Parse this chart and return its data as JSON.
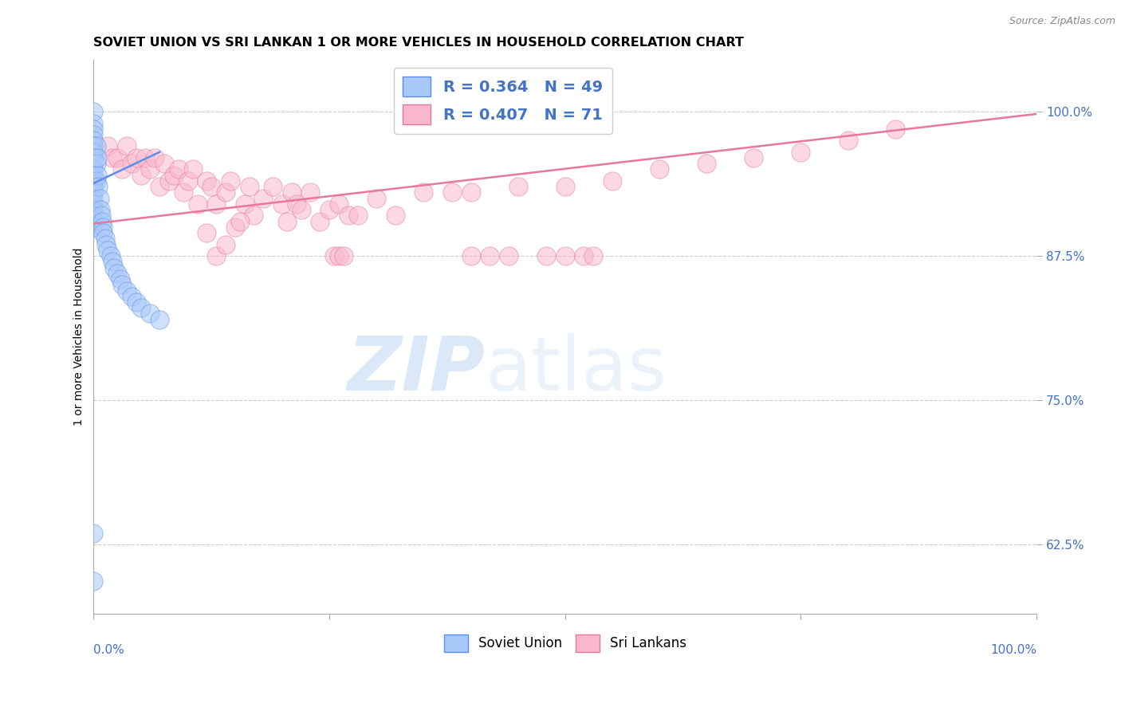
{
  "title": "SOVIET UNION VS SRI LANKAN 1 OR MORE VEHICLES IN HOUSEHOLD CORRELATION CHART",
  "source": "Source: ZipAtlas.com",
  "ylabel": "1 or more Vehicles in Household",
  "ytick_labels": [
    "100.0%",
    "87.5%",
    "75.0%",
    "62.5%"
  ],
  "ytick_values": [
    1.0,
    0.875,
    0.75,
    0.625
  ],
  "xlim": [
    0.0,
    1.0
  ],
  "ylim": [
    0.565,
    1.045
  ],
  "watermark_zip": "ZIP",
  "watermark_atlas": "atlas",
  "soviet_color": "#a8c8fa",
  "soviet_edge": "#5b8def",
  "sri_color": "#f9b8cc",
  "sri_edge": "#e8789a",
  "grid_color": "#cccccc",
  "background_color": "#ffffff",
  "title_fontsize": 11.5,
  "axis_label_fontsize": 10,
  "tick_fontsize": 11,
  "legend_fontsize": 14,
  "soviet_x": [
    0.0,
    0.0,
    0.0,
    0.0,
    0.0,
    0.0,
    0.0,
    0.0,
    0.0,
    0.0,
    0.0,
    0.0,
    0.0,
    0.0,
    0.0,
    0.0,
    0.0,
    0.0,
    0.0,
    0.0,
    0.003,
    0.003,
    0.003,
    0.004,
    0.004,
    0.005,
    0.006,
    0.007,
    0.008,
    0.009,
    0.01,
    0.01,
    0.012,
    0.013,
    0.015,
    0.018,
    0.02,
    0.022,
    0.025,
    0.028,
    0.03,
    0.035,
    0.04,
    0.045,
    0.05,
    0.06,
    0.07,
    0.0,
    0.0
  ],
  "soviet_y": [
    1.0,
    0.99,
    0.985,
    0.98,
    0.975,
    0.97,
    0.965,
    0.96,
    0.955,
    0.95,
    0.945,
    0.94,
    0.935,
    0.93,
    0.925,
    0.92,
    0.915,
    0.91,
    0.905,
    0.9,
    0.97,
    0.955,
    0.94,
    0.96,
    0.945,
    0.935,
    0.925,
    0.915,
    0.91,
    0.905,
    0.9,
    0.895,
    0.89,
    0.885,
    0.88,
    0.875,
    0.87,
    0.865,
    0.86,
    0.855,
    0.85,
    0.845,
    0.84,
    0.835,
    0.83,
    0.825,
    0.82,
    0.635,
    0.593
  ],
  "sri_x": [
    0.015,
    0.02,
    0.025,
    0.03,
    0.035,
    0.04,
    0.045,
    0.05,
    0.055,
    0.06,
    0.065,
    0.07,
    0.075,
    0.08,
    0.085,
    0.09,
    0.095,
    0.1,
    0.105,
    0.11,
    0.12,
    0.125,
    0.13,
    0.14,
    0.145,
    0.15,
    0.16,
    0.165,
    0.17,
    0.18,
    0.19,
    0.2,
    0.205,
    0.21,
    0.215,
    0.22,
    0.23,
    0.24,
    0.25,
    0.26,
    0.12,
    0.13,
    0.14,
    0.155,
    0.27,
    0.28,
    0.3,
    0.32,
    0.35,
    0.38,
    0.4,
    0.45,
    0.5,
    0.55,
    0.6,
    0.65,
    0.7,
    0.75,
    0.8,
    0.85,
    0.255,
    0.26,
    0.265,
    0.4,
    0.42,
    0.44,
    0.5,
    0.52,
    0.48,
    0.53
  ],
  "sri_y": [
    0.97,
    0.96,
    0.96,
    0.95,
    0.97,
    0.955,
    0.96,
    0.945,
    0.96,
    0.95,
    0.96,
    0.935,
    0.955,
    0.94,
    0.945,
    0.95,
    0.93,
    0.94,
    0.95,
    0.92,
    0.94,
    0.935,
    0.92,
    0.93,
    0.94,
    0.9,
    0.92,
    0.935,
    0.91,
    0.925,
    0.935,
    0.92,
    0.905,
    0.93,
    0.92,
    0.915,
    0.93,
    0.905,
    0.915,
    0.92,
    0.895,
    0.875,
    0.885,
    0.905,
    0.91,
    0.91,
    0.925,
    0.91,
    0.93,
    0.93,
    0.93,
    0.935,
    0.935,
    0.94,
    0.95,
    0.955,
    0.96,
    0.965,
    0.975,
    0.985,
    0.875,
    0.875,
    0.875,
    0.875,
    0.875,
    0.875,
    0.875,
    0.875,
    0.875,
    0.875
  ],
  "sri_line_x0": 0.0,
  "sri_line_x1": 1.0,
  "sri_line_y0": 0.903,
  "sri_line_y1": 0.998,
  "sov_line_x0": 0.0,
  "sov_line_x1": 0.07,
  "sov_line_y0": 0.938,
  "sov_line_y1": 0.965
}
